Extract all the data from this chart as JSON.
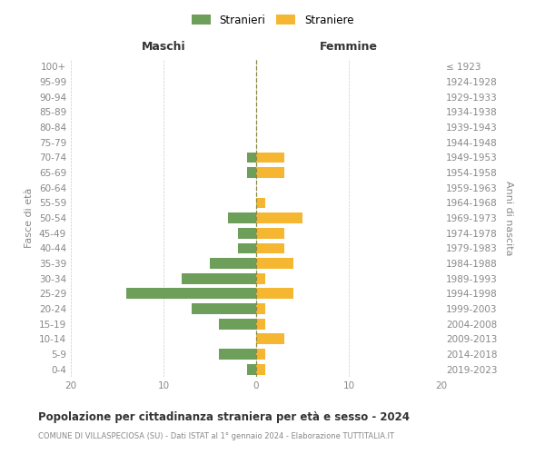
{
  "age_groups": [
    "0-4",
    "5-9",
    "10-14",
    "15-19",
    "20-24",
    "25-29",
    "30-34",
    "35-39",
    "40-44",
    "45-49",
    "50-54",
    "55-59",
    "60-64",
    "65-69",
    "70-74",
    "75-79",
    "80-84",
    "85-89",
    "90-94",
    "95-99",
    "100+"
  ],
  "birth_years": [
    "2019-2023",
    "2014-2018",
    "2009-2013",
    "2004-2008",
    "1999-2003",
    "1994-1998",
    "1989-1993",
    "1984-1988",
    "1979-1983",
    "1974-1978",
    "1969-1973",
    "1964-1968",
    "1959-1963",
    "1954-1958",
    "1949-1953",
    "1944-1948",
    "1939-1943",
    "1934-1938",
    "1929-1933",
    "1924-1928",
    "≤ 1923"
  ],
  "stranieri_maschi": [
    1,
    4,
    0,
    4,
    7,
    14,
    8,
    5,
    2,
    2,
    3,
    0,
    0,
    1,
    1,
    0,
    0,
    0,
    0,
    0,
    0
  ],
  "straniere_femmine": [
    1,
    1,
    3,
    1,
    1,
    4,
    1,
    4,
    3,
    3,
    5,
    1,
    0,
    3,
    3,
    0,
    0,
    0,
    0,
    0,
    0
  ],
  "color_maschi": "#6d9e5a",
  "color_femmine": "#f5b731",
  "title": "Popolazione per cittadinanza straniera per età e sesso - 2024",
  "subtitle": "COMUNE DI VILLASPECIOSA (SU) - Dati ISTAT al 1° gennaio 2024 - Elaborazione TUTTITALIA.IT",
  "xlabel_left": "Maschi",
  "xlabel_right": "Femmine",
  "ylabel_left": "Fasce di età",
  "ylabel_right": "Anni di nascita",
  "xlim": 20,
  "legend_stranieri": "Stranieri",
  "legend_straniere": "Straniere",
  "background_color": "#ffffff",
  "grid_color": "#cccccc",
  "label_color": "#888888",
  "title_color": "#333333"
}
